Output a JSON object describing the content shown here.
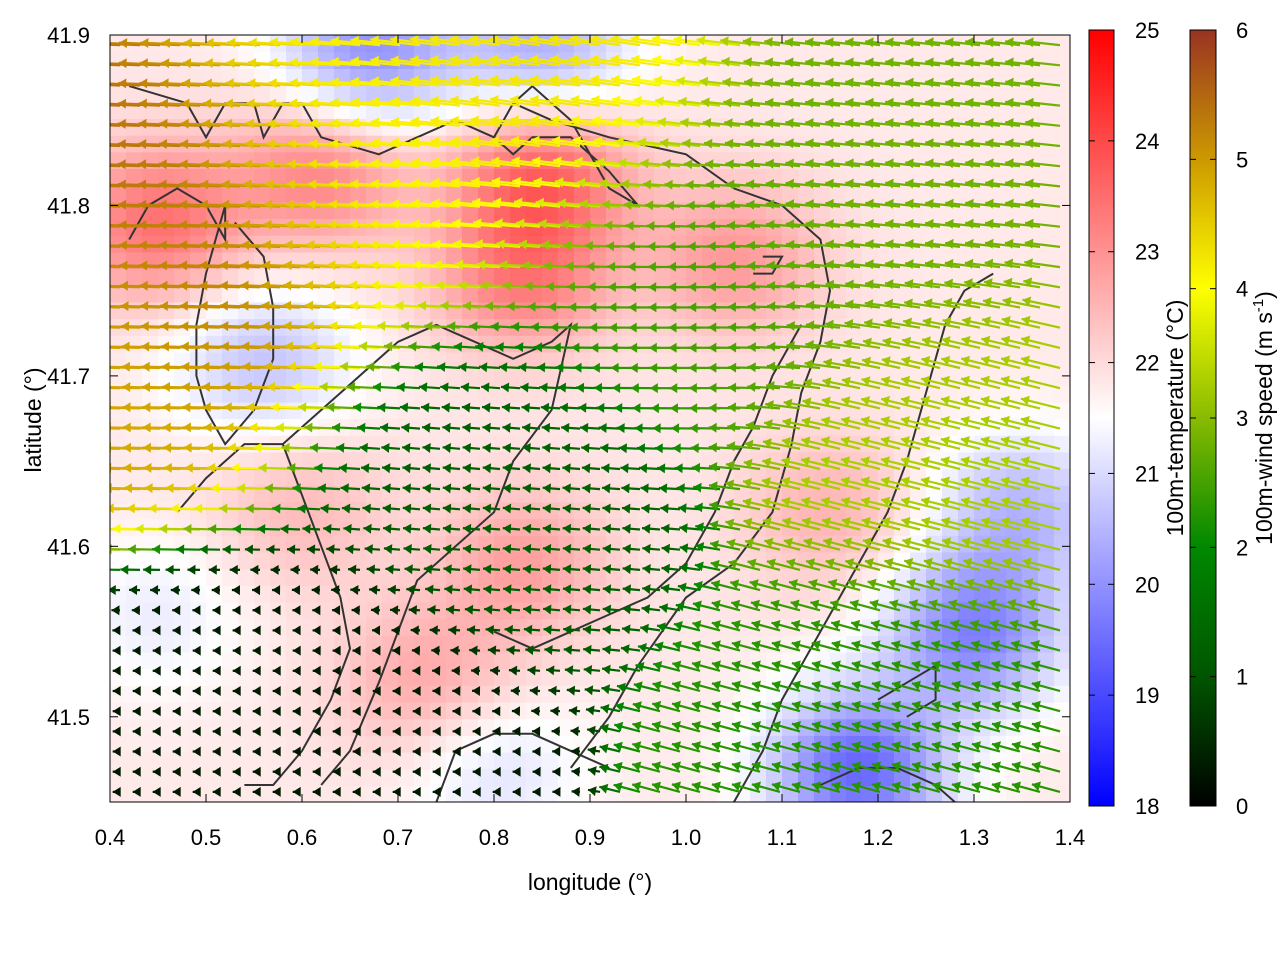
{
  "chart_data": {
    "type": "heatmap",
    "subtype": "temperature field with wind vectors and contour lines",
    "xlabel": "longitude (°)",
    "ylabel": "latitude (°)",
    "xlim": [
      0.4,
      1.4
    ],
    "ylim": [
      41.45,
      41.9
    ],
    "xticks": [
      "0.4",
      "0.5",
      "0.6",
      "0.7",
      "0.8",
      "0.9",
      "1.0",
      "1.1",
      "1.2",
      "1.3",
      "1.4"
    ],
    "yticks": [
      "41.5",
      "41.6",
      "41.7",
      "41.8",
      "41.9"
    ],
    "grid": false,
    "colorbars": [
      {
        "label": "100m-temperature (°C)",
        "range": [
          18,
          25
        ],
        "ticks": [
          "18",
          "19",
          "20",
          "21",
          "22",
          "23",
          "24",
          "25"
        ],
        "colors": [
          "#0000ff",
          "#ffffff",
          "#ff0000"
        ]
      },
      {
        "label_main": "100m-wind speed (m s",
        "label_sup": "-1",
        "label_end": ")",
        "range": [
          0,
          6
        ],
        "ticks": [
          "0",
          "1",
          "2",
          "3",
          "4",
          "5",
          "6"
        ],
        "colors": [
          "#000000",
          "#005500",
          "#008800",
          "#88bb00",
          "#ffff00",
          "#cc9900",
          "#993322"
        ]
      }
    ],
    "temperature_hotspots": [
      {
        "lon": 0.45,
        "lat": 41.79,
        "temp": 23.6
      },
      {
        "lon": 0.62,
        "lat": 41.82,
        "temp": 23.3
      },
      {
        "lon": 0.85,
        "lat": 41.82,
        "temp": 23.8
      },
      {
        "lon": 0.83,
        "lat": 41.76,
        "temp": 23.4
      },
      {
        "lon": 1.05,
        "lat": 41.77,
        "temp": 23.0
      },
      {
        "lon": 0.73,
        "lat": 41.52,
        "temp": 22.8
      },
      {
        "lon": 0.83,
        "lat": 41.59,
        "temp": 22.9
      },
      {
        "lon": 1.15,
        "lat": 41.62,
        "temp": 22.6
      },
      {
        "lon": 0.6,
        "lat": 41.62,
        "temp": 22.5
      }
    ],
    "temperature_coldspots": [
      {
        "lon": 1.18,
        "lat": 41.47,
        "temp": 19.2
      },
      {
        "lon": 1.3,
        "lat": 41.55,
        "temp": 19.6
      },
      {
        "lon": 1.35,
        "lat": 41.62,
        "temp": 20.4
      },
      {
        "lon": 0.56,
        "lat": 41.71,
        "temp": 20.6
      },
      {
        "lon": 0.67,
        "lat": 41.89,
        "temp": 19.8
      },
      {
        "lon": 0.85,
        "lat": 41.89,
        "temp": 20.2
      },
      {
        "lon": 0.8,
        "lat": 41.47,
        "temp": 21.0
      },
      {
        "lon": 0.45,
        "lat": 41.56,
        "temp": 21.2
      }
    ],
    "wind_vector_samples": [
      {
        "lon": 0.48,
        "lat": 41.72,
        "u": -4.8,
        "v": 0.1
      },
      {
        "lon": 0.55,
        "lat": 41.77,
        "u": -5.5,
        "v": 0.2
      },
      {
        "lon": 0.7,
        "lat": 41.8,
        "u": -4.0,
        "v": 0.2
      },
      {
        "lon": 0.85,
        "lat": 41.85,
        "u": -4.2,
        "v": 0.6
      },
      {
        "lon": 1.0,
        "lat": 41.75,
        "u": -2.5,
        "v": 0.0
      },
      {
        "lon": 1.2,
        "lat": 41.8,
        "u": -2.8,
        "v": 0.3
      },
      {
        "lon": 1.3,
        "lat": 41.65,
        "u": -3.2,
        "v": 0.8
      },
      {
        "lon": 1.25,
        "lat": 41.5,
        "u": -2.2,
        "v": 0.6
      },
      {
        "lon": 0.8,
        "lat": 41.65,
        "u": -1.2,
        "v": 0.1
      },
      {
        "lon": 0.6,
        "lat": 41.5,
        "u": -0.3,
        "v": 0.0
      }
    ],
    "contours": [
      [
        [
          0.42,
          41.87
        ],
        [
          0.48,
          41.86
        ],
        [
          0.5,
          41.84
        ],
        [
          0.52,
          41.86
        ],
        [
          0.55,
          41.86
        ],
        [
          0.56,
          41.84
        ],
        [
          0.58,
          41.86
        ],
        [
          0.6,
          41.86
        ],
        [
          0.62,
          41.84
        ],
        [
          0.68,
          41.83
        ],
        [
          0.72,
          41.84
        ],
        [
          0.76,
          41.85
        ],
        [
          0.8,
          41.84
        ],
        [
          0.82,
          41.86
        ],
        [
          0.84,
          41.87
        ]
      ],
      [
        [
          0.42,
          41.78
        ],
        [
          0.44,
          41.8
        ],
        [
          0.47,
          41.81
        ],
        [
          0.5,
          41.8
        ],
        [
          0.52,
          41.78
        ],
        [
          0.52,
          41.8
        ],
        [
          0.5,
          41.76
        ],
        [
          0.49,
          41.73
        ],
        [
          0.49,
          41.7
        ],
        [
          0.5,
          41.68
        ],
        [
          0.52,
          41.66
        ],
        [
          0.55,
          41.68
        ],
        [
          0.57,
          41.71
        ],
        [
          0.57,
          41.74
        ],
        [
          0.56,
          41.77
        ],
        [
          0.53,
          41.79
        ]
      ],
      [
        [
          0.84,
          41.87
        ],
        [
          0.86,
          41.86
        ],
        [
          0.88,
          41.85
        ],
        [
          0.9,
          41.83
        ],
        [
          0.92,
          41.81
        ],
        [
          0.95,
          41.8
        ],
        [
          0.92,
          41.82
        ],
        [
          0.88,
          41.84
        ],
        [
          0.84,
          41.84
        ],
        [
          0.82,
          41.83
        ],
        [
          0.8,
          41.84
        ]
      ],
      [
        [
          0.82,
          41.86
        ],
        [
          0.86,
          41.85
        ],
        [
          0.92,
          41.84
        ],
        [
          1.0,
          41.83
        ],
        [
          1.05,
          41.81
        ],
        [
          1.1,
          41.8
        ],
        [
          1.14,
          41.78
        ],
        [
          1.15,
          41.75
        ],
        [
          1.14,
          41.72
        ],
        [
          1.12,
          41.69
        ],
        [
          1.11,
          41.66
        ],
        [
          1.09,
          41.62
        ],
        [
          1.05,
          41.59
        ],
        [
          1.0,
          41.57
        ],
        [
          0.95,
          41.53
        ],
        [
          0.92,
          41.5
        ],
        [
          0.88,
          41.47
        ]
      ],
      [
        [
          0.58,
          41.66
        ],
        [
          0.62,
          41.68
        ],
        [
          0.66,
          41.7
        ],
        [
          0.7,
          41.72
        ],
        [
          0.74,
          41.73
        ],
        [
          0.78,
          41.72
        ],
        [
          0.82,
          41.71
        ],
        [
          0.86,
          41.72
        ],
        [
          0.88,
          41.73
        ],
        [
          0.86,
          41.68
        ],
        [
          0.82,
          41.65
        ],
        [
          0.8,
          41.62
        ],
        [
          0.76,
          41.6
        ],
        [
          0.72,
          41.58
        ],
        [
          0.7,
          41.55
        ],
        [
          0.68,
          41.52
        ],
        [
          0.65,
          41.48
        ],
        [
          0.62,
          41.46
        ]
      ],
      [
        [
          0.47,
          41.62
        ],
        [
          0.5,
          41.64
        ],
        [
          0.54,
          41.66
        ],
        [
          0.58,
          41.66
        ],
        [
          0.6,
          41.63
        ],
        [
          0.62,
          41.6
        ],
        [
          0.64,
          41.57
        ],
        [
          0.65,
          41.54
        ],
        [
          0.63,
          41.51
        ],
        [
          0.6,
          41.48
        ],
        [
          0.57,
          41.46
        ],
        [
          0.54,
          41.46
        ]
      ],
      [
        [
          0.8,
          41.55
        ],
        [
          0.84,
          41.54
        ],
        [
          0.88,
          41.55
        ],
        [
          0.92,
          41.56
        ],
        [
          0.96,
          41.57
        ],
        [
          1.0,
          41.59
        ],
        [
          1.03,
          41.62
        ],
        [
          1.05,
          41.65
        ],
        [
          1.07,
          41.67
        ],
        [
          1.09,
          41.7
        ],
        [
          1.12,
          41.73
        ]
      ],
      [
        [
          0.74,
          41.45
        ],
        [
          0.76,
          41.48
        ],
        [
          0.8,
          41.49
        ],
        [
          0.84,
          41.49
        ],
        [
          0.88,
          41.48
        ],
        [
          0.92,
          41.47
        ]
      ],
      [
        [
          1.05,
          41.45
        ],
        [
          1.08,
          41.48
        ],
        [
          1.1,
          41.51
        ],
        [
          1.13,
          41.54
        ],
        [
          1.16,
          41.57
        ],
        [
          1.19,
          41.6
        ],
        [
          1.21,
          41.62
        ],
        [
          1.23,
          41.65
        ],
        [
          1.25,
          41.69
        ],
        [
          1.27,
          41.73
        ],
        [
          1.29,
          41.75
        ],
        [
          1.32,
          41.76
        ]
      ],
      [
        [
          1.14,
          41.46
        ],
        [
          1.18,
          41.47
        ],
        [
          1.22,
          41.47
        ],
        [
          1.26,
          41.46
        ],
        [
          1.28,
          41.45
        ]
      ],
      [
        [
          1.2,
          41.51
        ],
        [
          1.23,
          41.52
        ],
        [
          1.26,
          41.53
        ],
        [
          1.26,
          41.51
        ],
        [
          1.23,
          41.5
        ]
      ],
      [
        [
          1.07,
          41.76
        ],
        [
          1.09,
          41.76
        ],
        [
          1.1,
          41.77
        ],
        [
          1.08,
          41.77
        ]
      ]
    ]
  }
}
